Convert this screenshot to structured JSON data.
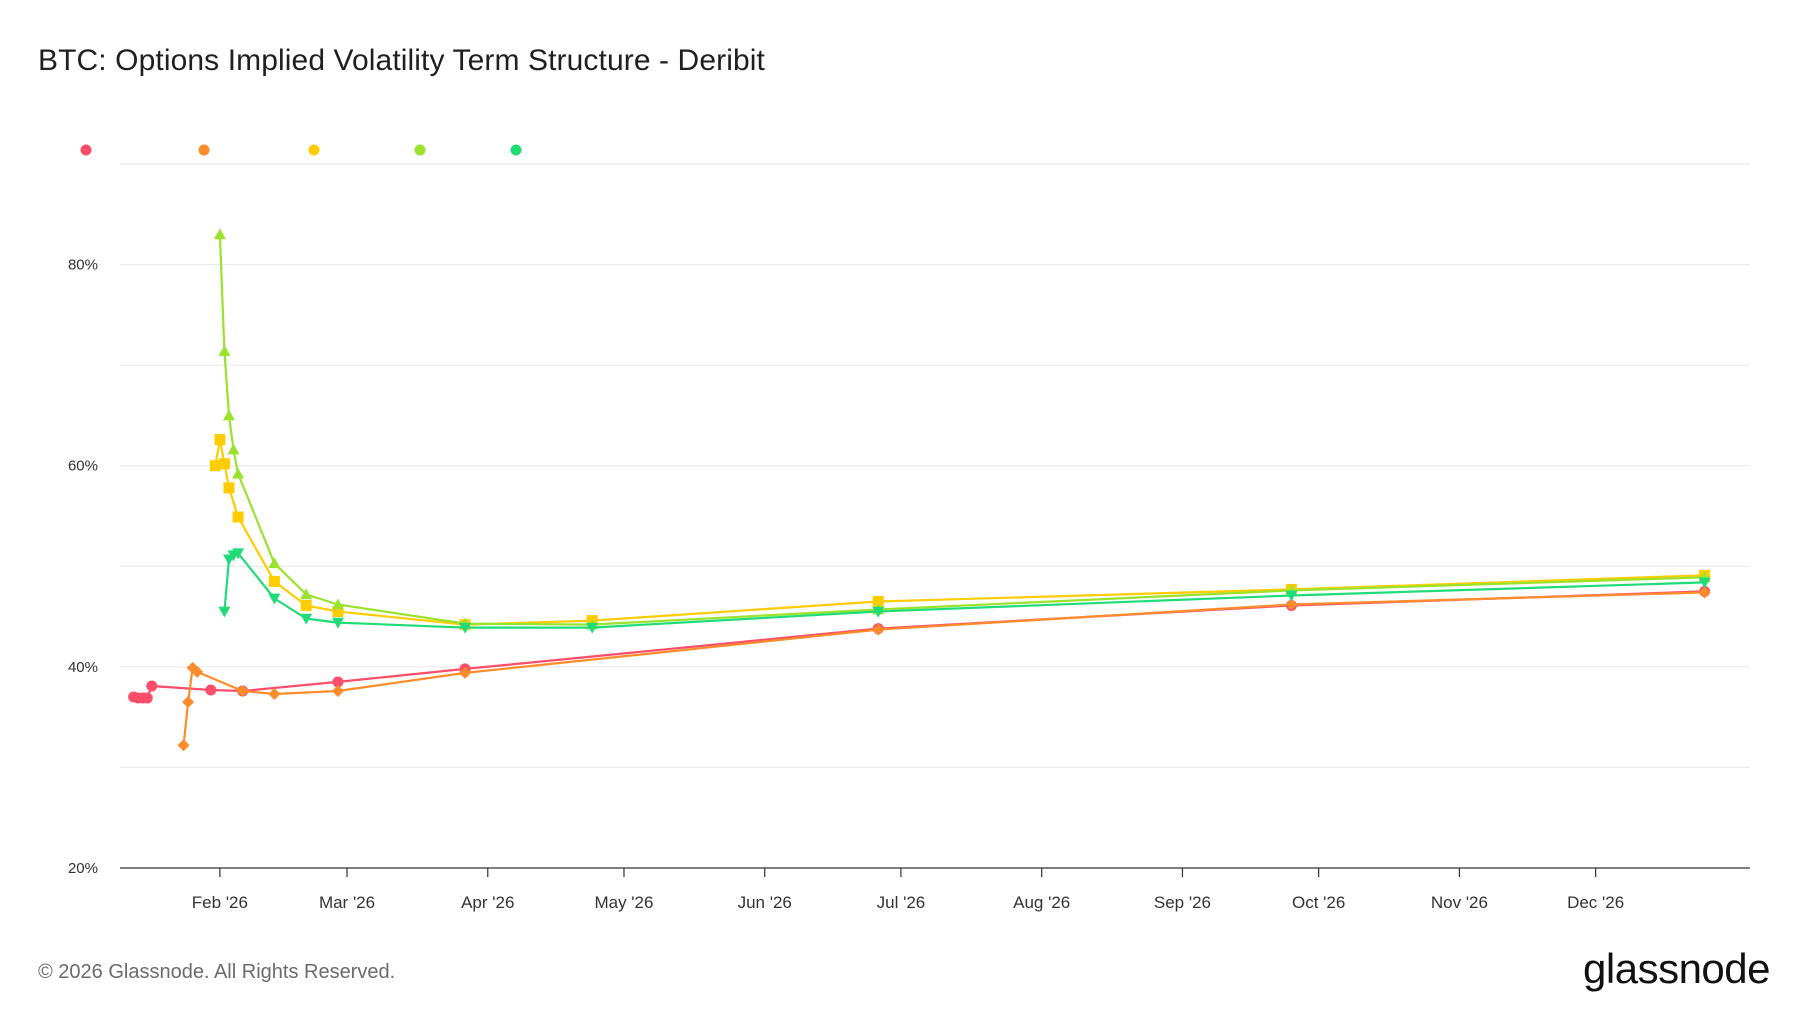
{
  "header": {
    "title": "BTC: Options Implied Volatility Term Structure - Deribit"
  },
  "footer": {
    "copyright": "© 2026 Glassnode. All Rights Reserved.",
    "brand": "glassnode"
  },
  "chart_data": {
    "type": "line",
    "x_axis": {
      "type": "date",
      "range": [
        "2026-01-10",
        "2027-01-04"
      ],
      "tick_labels": [
        {
          "date": "2026-02-01",
          "label": "Feb '26"
        },
        {
          "date": "2026-03-01",
          "label": "Mar '26"
        },
        {
          "date": "2026-04-01",
          "label": "Apr '26"
        },
        {
          "date": "2026-05-01",
          "label": "May '26"
        },
        {
          "date": "2026-06-01",
          "label": "Jun '26"
        },
        {
          "date": "2026-07-01",
          "label": "Jul '26"
        },
        {
          "date": "2026-08-01",
          "label": "Aug '26"
        },
        {
          "date": "2026-09-01",
          "label": "Sep '26"
        },
        {
          "date": "2026-10-01",
          "label": "Oct '26"
        },
        {
          "date": "2026-11-01",
          "label": "Nov '26"
        },
        {
          "date": "2026-12-01",
          "label": "Dec '26"
        }
      ]
    },
    "y_axis": {
      "range": [
        20,
        90
      ],
      "ticks": [
        20,
        30,
        40,
        50,
        60,
        70,
        80,
        90
      ],
      "tick_labels": [
        {
          "value": 20,
          "label": "20%"
        },
        {
          "value": 40,
          "label": "40%"
        },
        {
          "value": 60,
          "label": "60%"
        },
        {
          "value": 80,
          "label": "80%"
        }
      ]
    },
    "grid": true,
    "legend": {
      "placement": "top-left"
    },
    "series": [
      {
        "color": "#ff4d6a",
        "marker": "circle",
        "points": [
          [
            "2026-01-13",
            37.0
          ],
          [
            "2026-01-14",
            36.9
          ],
          [
            "2026-01-15",
            36.9
          ],
          [
            "2026-01-16",
            36.9
          ],
          [
            "2026-01-17",
            38.1
          ],
          [
            "2026-01-30",
            37.7
          ],
          [
            "2026-02-06",
            37.6
          ],
          [
            "2026-02-27",
            38.5
          ],
          [
            "2026-03-27",
            39.8
          ],
          [
            "2026-06-26",
            43.8
          ],
          [
            "2026-09-25",
            46.1
          ],
          [
            "2026-12-25",
            47.5
          ]
        ]
      },
      {
        "color": "#ff8c2a",
        "marker": "diamond",
        "points": [
          [
            "2026-01-24",
            32.2
          ],
          [
            "2026-01-25",
            36.5
          ],
          [
            "2026-01-26",
            39.9
          ],
          [
            "2026-01-27",
            39.5
          ],
          [
            "2026-02-06",
            37.6
          ],
          [
            "2026-02-13",
            37.3
          ],
          [
            "2026-02-27",
            37.6
          ],
          [
            "2026-03-27",
            39.4
          ],
          [
            "2026-06-26",
            43.7
          ],
          [
            "2026-09-25",
            46.2
          ],
          [
            "2026-12-25",
            47.4
          ]
        ]
      },
      {
        "color": "#ffcc00",
        "marker": "square",
        "points": [
          [
            "2026-01-31",
            60.0
          ],
          [
            "2026-02-01",
            62.6
          ],
          [
            "2026-02-02",
            60.2
          ],
          [
            "2026-02-03",
            57.8
          ],
          [
            "2026-02-05",
            54.9
          ],
          [
            "2026-02-13",
            48.5
          ],
          [
            "2026-02-20",
            46.1
          ],
          [
            "2026-02-27",
            45.5
          ],
          [
            "2026-03-27",
            44.2
          ],
          [
            "2026-04-24",
            44.6
          ],
          [
            "2026-06-26",
            46.5
          ],
          [
            "2026-09-25",
            47.7
          ],
          [
            "2026-12-25",
            49.1
          ]
        ]
      },
      {
        "color": "#9be22d",
        "marker": "triangle-up",
        "points": [
          [
            "2026-02-01",
            83.0
          ],
          [
            "2026-02-02",
            71.4
          ],
          [
            "2026-02-03",
            65.0
          ],
          [
            "2026-02-04",
            61.6
          ],
          [
            "2026-02-05",
            59.2
          ],
          [
            "2026-02-13",
            50.3
          ],
          [
            "2026-02-20",
            47.2
          ],
          [
            "2026-02-27",
            46.2
          ],
          [
            "2026-03-27",
            44.3
          ],
          [
            "2026-04-24",
            44.2
          ],
          [
            "2026-06-26",
            45.7
          ],
          [
            "2026-09-25",
            47.6
          ],
          [
            "2026-12-25",
            48.9
          ]
        ]
      },
      {
        "color": "#1fdc79",
        "marker": "triangle-down",
        "points": [
          [
            "2026-02-02",
            45.5
          ],
          [
            "2026-02-03",
            50.7
          ],
          [
            "2026-02-04",
            51.1
          ],
          [
            "2026-02-05",
            51.3
          ],
          [
            "2026-02-13",
            46.8
          ],
          [
            "2026-02-20",
            44.8
          ],
          [
            "2026-02-27",
            44.4
          ],
          [
            "2026-03-27",
            43.9
          ],
          [
            "2026-04-24",
            43.9
          ],
          [
            "2026-06-26",
            45.5
          ],
          [
            "2026-09-25",
            47.1
          ],
          [
            "2026-12-25",
            48.4
          ]
        ]
      }
    ]
  }
}
